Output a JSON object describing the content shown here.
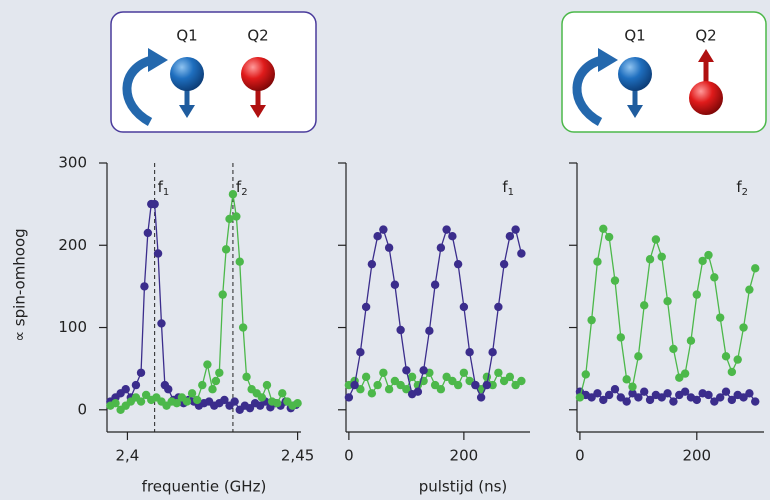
{
  "insets": [
    {
      "labels": [
        "Q1",
        "Q2"
      ]
    },
    {
      "labels": [
        "Q1",
        "Q2"
      ]
    }
  ],
  "chart_data": [
    {
      "type": "line",
      "ylabel": "∝ spin-omhoog",
      "xlabel": "frequentie (GHz)",
      "xlim": [
        2.394,
        2.451
      ],
      "ylim": [
        -27,
        300
      ],
      "xticks": [
        {
          "value": 2.4,
          "label": "2,4"
        },
        {
          "value": 2.45,
          "label": "2,45"
        }
      ],
      "yticks": [
        0,
        100,
        200,
        300
      ],
      "annotations": [
        {
          "x": 2.408,
          "text": "f",
          "sub": "1"
        },
        {
          "x": 2.431,
          "text": "f",
          "sub": "2"
        }
      ],
      "series": [
        {
          "color": "#3b2d8c",
          "x": [
            2.395,
            2.3965,
            2.398,
            2.3995,
            2.401,
            2.4025,
            2.404,
            2.405,
            2.406,
            2.407,
            2.408,
            2.409,
            2.41,
            2.411,
            2.412,
            2.4135,
            2.415,
            2.4165,
            2.418,
            2.4195,
            2.421,
            2.4225,
            2.424,
            2.4255,
            2.427,
            2.4285,
            2.43,
            2.4315,
            2.433,
            2.4345,
            2.436,
            2.4375,
            2.439,
            2.4405,
            2.442,
            2.4435,
            2.445,
            2.4465,
            2.448,
            2.4495
          ],
          "values": [
            10,
            15,
            20,
            25,
            15,
            30,
            45,
            150,
            215,
            250,
            250,
            190,
            105,
            30,
            25,
            12,
            15,
            8,
            12,
            10,
            5,
            8,
            10,
            5,
            8,
            12,
            5,
            10,
            0,
            5,
            2,
            8,
            5,
            10,
            3,
            8,
            5,
            10,
            2,
            6
          ]
        },
        {
          "color": "#4cb84a",
          "x": [
            2.395,
            2.3965,
            2.398,
            2.3995,
            2.401,
            2.4025,
            2.404,
            2.4055,
            2.407,
            2.4085,
            2.41,
            2.4115,
            2.413,
            2.4145,
            2.416,
            2.4175,
            2.419,
            2.4205,
            2.422,
            2.4235,
            2.425,
            2.426,
            2.427,
            2.428,
            2.429,
            2.43,
            2.431,
            2.432,
            2.433,
            2.434,
            2.435,
            2.4365,
            2.438,
            2.4395,
            2.441,
            2.4425,
            2.444,
            2.4455,
            2.447,
            2.4485,
            2.45
          ],
          "values": [
            5,
            8,
            0,
            5,
            10,
            15,
            10,
            18,
            12,
            15,
            10,
            5,
            10,
            8,
            15,
            10,
            20,
            12,
            30,
            55,
            25,
            35,
            45,
            140,
            195,
            232,
            262,
            235,
            180,
            100,
            40,
            25,
            20,
            15,
            30,
            10,
            8,
            20,
            10,
            5,
            8
          ]
        }
      ]
    },
    {
      "type": "line",
      "xlabel": "pulstijd (ns)",
      "ytick_labels": false,
      "xlim": [
        -5,
        315
      ],
      "ylim": [
        -27,
        300
      ],
      "xticks": [
        0,
        200
      ],
      "yticks": [
        0,
        100,
        200,
        300
      ],
      "annotations": [
        {
          "text": "f",
          "sub": "1"
        }
      ],
      "x": [
        0,
        10,
        20,
        30,
        40,
        50,
        60,
        70,
        80,
        90,
        100,
        110,
        120,
        130,
        140,
        150,
        160,
        170,
        180,
        190,
        200,
        210,
        220,
        230,
        240,
        250,
        260,
        270,
        280,
        290,
        300
      ],
      "series": [
        {
          "color": "#4cb84a",
          "values": [
            30,
            35,
            25,
            40,
            20,
            30,
            45,
            25,
            35,
            30,
            25,
            40,
            30,
            35,
            45,
            30,
            25,
            40,
            35,
            30,
            45,
            35,
            30,
            25,
            40,
            30,
            45,
            35,
            40,
            30,
            35
          ]
        },
        {
          "color": "#3b2d8c",
          "values": [
            15,
            30,
            70,
            125,
            177,
            211,
            219,
            197,
            152,
            97,
            48,
            19,
            22,
            48,
            96,
            152,
            197,
            219,
            211,
            177,
            125,
            70,
            30,
            15,
            30,
            70,
            125,
            177,
            211,
            219,
            190
          ]
        }
      ]
    },
    {
      "type": "line",
      "ytick_labels": false,
      "xlim": [
        -5,
        315
      ],
      "ylim": [
        -27,
        300
      ],
      "xticks": [
        0,
        200
      ],
      "yticks": [
        0,
        100,
        200,
        300
      ],
      "annotations": [
        {
          "text": "f",
          "sub": "2"
        }
      ],
      "x": [
        0,
        10,
        20,
        30,
        40,
        50,
        60,
        70,
        80,
        90,
        100,
        110,
        120,
        130,
        140,
        150,
        160,
        170,
        180,
        190,
        200,
        210,
        220,
        230,
        240,
        250,
        260,
        270,
        280,
        290,
        300
      ],
      "series": [
        {
          "color": "#3b2d8c",
          "values": [
            22,
            18,
            15,
            20,
            12,
            18,
            25,
            15,
            10,
            20,
            15,
            22,
            12,
            18,
            15,
            20,
            10,
            18,
            22,
            15,
            12,
            20,
            18,
            10,
            15,
            22,
            12,
            18,
            15,
            20,
            10
          ]
        },
        {
          "color": "#4cb84a",
          "values": [
            15,
            43,
            109,
            180,
            220,
            210,
            157,
            88,
            37,
            28,
            65,
            127,
            183,
            207,
            186,
            132,
            74,
            39,
            44,
            84,
            140,
            181,
            188,
            161,
            112,
            65,
            46,
            61,
            100,
            146,
            172
          ]
        }
      ]
    }
  ]
}
